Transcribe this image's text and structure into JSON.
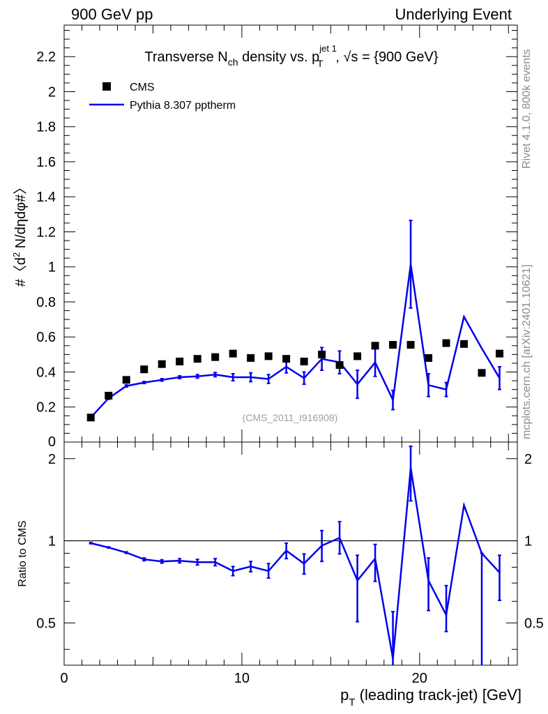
{
  "header": {
    "left": "900 GeV pp",
    "right": "Underlying Event"
  },
  "side_text": {
    "rivet": "Rivet 4.1.0,  800k events",
    "mcplots": "mcplots.cern.ch [arXiv:2401.10621]"
  },
  "watermark": "(CMS_2011_I916908)",
  "chart_data": [
    {
      "type": "scatter",
      "panel": "main",
      "title_parts": {
        "prefix": "Transverse N",
        "sub_ch": "ch",
        "middle": " density vs. p",
        "sup_jet": "jet 1",
        "sub_T": "T",
        "suffix": ", √s = {900 GeV}"
      },
      "ylabel_parts": {
        "a": "#〈d",
        "sup": "2",
        "b": " N/dηdφ#〉"
      },
      "xlim": [
        0,
        25.5
      ],
      "ylim": [
        0,
        2.38
      ],
      "yticks": [
        0.2,
        0.4,
        0.6,
        0.8,
        1,
        1.2,
        1.4,
        1.6,
        1.8,
        2,
        2.2
      ],
      "ytick_labels": [
        "0.2",
        "0.4",
        "0.6",
        "0.8",
        "1",
        "1.2",
        "1.4",
        "1.6",
        "1.8",
        "2",
        "2.2"
      ],
      "y_zero_label": "0",
      "legend": [
        {
          "name": "CMS",
          "marker": "square"
        },
        {
          "name": "Pythia 8.307 pptherm",
          "marker": "line"
        }
      ],
      "series": [
        {
          "name": "CMS",
          "color": "#000000",
          "x": [
            1.5,
            2.5,
            3.5,
            4.5,
            5.5,
            6.5,
            7.5,
            8.5,
            9.5,
            10.5,
            11.5,
            12.5,
            13.5,
            14.5,
            15.5,
            16.5,
            17.5,
            18.5,
            19.5,
            20.5,
            21.5,
            22.5,
            23.5,
            24.5
          ],
          "y": [
            0.14,
            0.265,
            0.355,
            0.415,
            0.445,
            0.46,
            0.475,
            0.485,
            0.505,
            0.48,
            0.49,
            0.475,
            0.46,
            0.5,
            0.44,
            0.49,
            0.55,
            0.555,
            0.555,
            0.48,
            0.565,
            0.56,
            0.395,
            0.505
          ]
        },
        {
          "name": "Pythia 8.307 pptherm",
          "color": "#0000ee",
          "x": [
            1.5,
            2.5,
            3.5,
            4.5,
            5.5,
            6.5,
            7.5,
            8.5,
            9.5,
            10.5,
            11.5,
            12.5,
            13.5,
            14.5,
            15.5,
            16.5,
            17.5,
            18.5,
            19.5,
            20.5,
            21.5,
            22.5,
            23.5,
            24.5
          ],
          "y": [
            0.14,
            0.25,
            0.32,
            0.34,
            0.355,
            0.37,
            0.375,
            0.385,
            0.37,
            0.37,
            0.36,
            0.43,
            0.365,
            0.475,
            0.455,
            0.33,
            0.455,
            0.24,
            1.015,
            0.325,
            0.3,
            0.715,
            0.535,
            0.365
          ],
          "err": [
            0.005,
            0.006,
            0.006,
            0.006,
            0.007,
            0.008,
            0.01,
            0.012,
            0.02,
            0.025,
            0.025,
            0.035,
            0.035,
            0.065,
            0.065,
            0.08,
            0.08,
            0.055,
            0.25,
            0.065,
            0.04,
            0,
            0,
            0.065
          ]
        }
      ]
    },
    {
      "type": "line",
      "panel": "ratio",
      "ylabel": "Ratio to CMS",
      "xlabel_parts": {
        "p": "p",
        "sub": "T",
        "rest": " (leading track-jet) [GeV]"
      },
      "xlim": [
        0,
        25.5
      ],
      "ylim": [
        0.35,
        2.3
      ],
      "yscale": "log",
      "yticks": [
        0.5,
        1,
        2
      ],
      "ytick_labels": [
        "0.5",
        "1",
        "2"
      ],
      "xticks": [
        0,
        10,
        20
      ],
      "xtick_labels": [
        "0",
        "10",
        "20"
      ],
      "reference_line": 1,
      "series": [
        {
          "name": "Pythia 8.307 pptherm / CMS",
          "color": "#0000ee",
          "x": [
            1.5,
            2.5,
            3.5,
            4.5,
            5.5,
            6.5,
            7.5,
            8.5,
            9.5,
            10.5,
            11.5,
            12.5,
            13.5,
            14.5,
            15.5,
            16.5,
            17.5,
            18.5,
            19.5,
            20.5,
            21.5,
            22.5,
            23.5,
            24.5
          ],
          "y": [
            0.98,
            0.945,
            0.905,
            0.855,
            0.84,
            0.845,
            0.835,
            0.835,
            0.775,
            0.805,
            0.775,
            0.92,
            0.825,
            0.96,
            1.025,
            0.715,
            0.86,
            0.37,
            1.85,
            0.715,
            0.535,
            1.35,
            0.9,
            0.765
          ],
          "err_lo": [
            0.005,
            0.005,
            0.006,
            0.01,
            0.012,
            0.015,
            0.02,
            0.025,
            0.03,
            0.035,
            0.045,
            0.06,
            0.07,
            0.12,
            0.13,
            0.21,
            0.15,
            0.03,
            0.45,
            0.16,
            0.07,
            0,
            0.55,
            0.16
          ],
          "err_hi": [
            0.005,
            0.005,
            0.006,
            0.01,
            0.012,
            0.015,
            0.02,
            0.025,
            0.03,
            0.035,
            0.05,
            0.06,
            0.07,
            0.13,
            0.15,
            0.17,
            0.11,
            0.18,
            0.37,
            0.15,
            0.15,
            0,
            0,
            0.12
          ]
        }
      ]
    }
  ]
}
